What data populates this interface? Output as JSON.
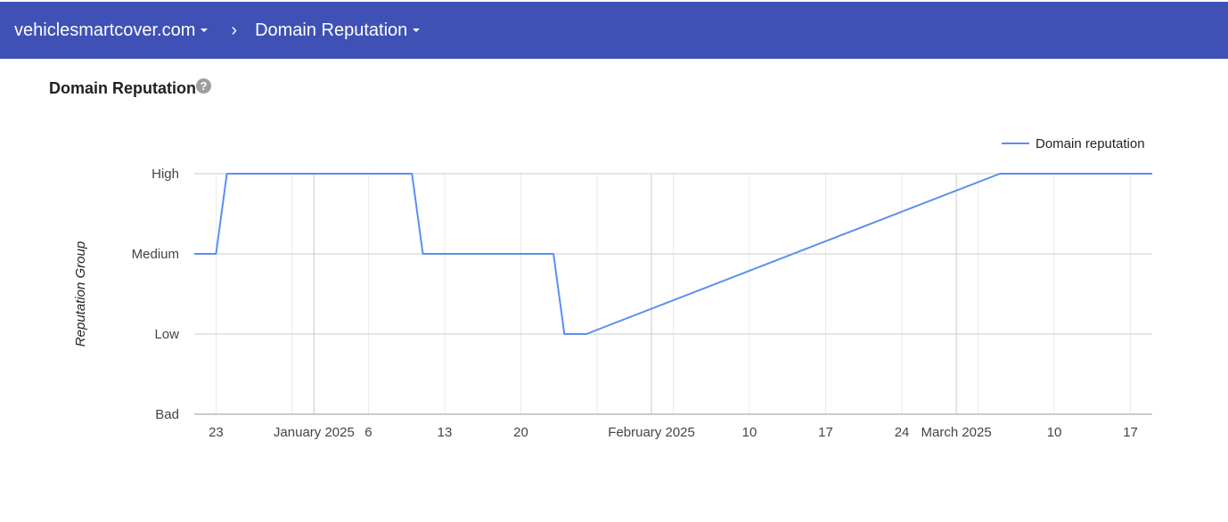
{
  "header": {
    "domain_label": "vehiclesmartcover.com",
    "section_label": "Domain Reputation",
    "separator": ">"
  },
  "page": {
    "title": "Domain Reputation",
    "help_glyph": "?"
  },
  "colors": {
    "header_bg": "#3f51b5",
    "series": "#5b8ff0",
    "gridline": "#cccccc",
    "minor_gridline": "#ebebeb"
  },
  "chart_data": {
    "type": "line",
    "ylabel": "Reputation Group",
    "categories": [
      "Bad",
      "Low",
      "Medium",
      "High"
    ],
    "legend": {
      "position": "top-right"
    },
    "x_range": [
      "2024-12-21",
      "2025-03-19"
    ],
    "x_ticks": [
      {
        "date": "2024-12-23",
        "label": "23"
      },
      {
        "date": "2025-01-01",
        "label": "January 2025"
      },
      {
        "date": "2025-01-06",
        "label": "6"
      },
      {
        "date": "2025-01-13",
        "label": "13"
      },
      {
        "date": "2025-01-20",
        "label": "20"
      },
      {
        "date": "2025-02-01",
        "label": "February 2025"
      },
      {
        "date": "2025-02-10",
        "label": "10"
      },
      {
        "date": "2025-02-17",
        "label": "17"
      },
      {
        "date": "2025-02-24",
        "label": "24"
      },
      {
        "date": "2025-03-01",
        "label": "March 2025"
      },
      {
        "date": "2025-03-10",
        "label": "10"
      },
      {
        "date": "2025-03-17",
        "label": "17"
      }
    ],
    "series": [
      {
        "name": "Domain reputation",
        "points": [
          {
            "x": "2024-12-21",
            "y": "Medium"
          },
          {
            "x": "2024-12-23",
            "y": "Medium"
          },
          {
            "x": "2024-12-24",
            "y": "High"
          },
          {
            "x": "2025-01-10",
            "y": "High"
          },
          {
            "x": "2025-01-11",
            "y": "Medium"
          },
          {
            "x": "2025-01-23",
            "y": "Medium"
          },
          {
            "x": "2025-01-24",
            "y": "Low"
          },
          {
            "x": "2025-01-26",
            "y": "Low"
          },
          {
            "x": "2025-03-05",
            "y": "High"
          },
          {
            "x": "2025-03-19",
            "y": "High"
          }
        ]
      }
    ]
  }
}
